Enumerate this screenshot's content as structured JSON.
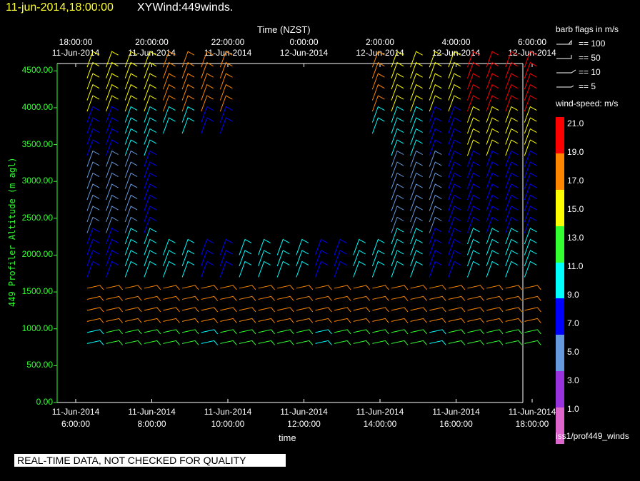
{
  "header": {
    "date": "11-jun-2014,18:00:00",
    "title": "XYWind:449winds."
  },
  "banner": "REAL-TIME DATA, NOT CHECKED FOR QUALITY",
  "legend": {
    "flags_title": "barb flags in m/s",
    "flags": [
      "== 100",
      "== 50",
      "== 10",
      "== 5"
    ],
    "speed_title": "wind-speed: m/s",
    "speed_labels": [
      "21.0",
      "19.0",
      "17.0",
      "15.0",
      "13.0",
      "11.0",
      "9.0",
      "7.0",
      "5.0",
      "3.0",
      "1.0"
    ],
    "source": "iss1/prof449_winds"
  },
  "colors": {
    "scale": [
      "#ff0000",
      "#ff8800",
      "#ffff00",
      "#33ff33",
      "#00ffff",
      "#0000ff",
      "#6699dd",
      "#9933dd",
      "#dd66cc"
    ],
    "axis_green": "#33ff33"
  },
  "chart_data": {
    "type": "wind-barb time-height",
    "title": "XYWind:449winds.",
    "top_axis": {
      "title": "Time (NZST)",
      "ticks": [
        [
          "18:00:00",
          "11-Jun-2014"
        ],
        [
          "20:00:00",
          "11-Jun-2014"
        ],
        [
          "22:00:00",
          "11-Jun-2014"
        ],
        [
          "0:00:00",
          "12-Jun-2014"
        ],
        [
          "2:00:00",
          "12-Jun-2014"
        ],
        [
          "4:00:00",
          "12-Jun-2014"
        ],
        [
          "6:00:00",
          "12-Jun-2014"
        ]
      ]
    },
    "bottom_axis": {
      "title": "time",
      "ticks": [
        [
          "11-Jun-2014",
          "6:00:00"
        ],
        [
          "11-Jun-2014",
          "8:00:00"
        ],
        [
          "11-Jun-2014",
          "10:00:00"
        ],
        [
          "11-Jun-2014",
          "12:00:00"
        ],
        [
          "11-Jun-2014",
          "14:00:00"
        ],
        [
          "11-Jun-2014",
          "16:00:00"
        ],
        [
          "11-Jun-2014",
          "18:00:00"
        ]
      ]
    },
    "x_hours_range": [
      0,
      12.3
    ],
    "y_axis": {
      "title": "449 Profiler Altitude (m agl)",
      "ticks": [
        "0.00",
        "500.00",
        "1000.00",
        "1500.00",
        "2000.00",
        "2500.00",
        "3000.00",
        "3500.00",
        "4000.00",
        "4500.00"
      ],
      "range": [
        0,
        4600
      ]
    },
    "profiles_hours": [
      0.3,
      0.8,
      1.3,
      1.8,
      2.3,
      2.8,
      3.3,
      3.8,
      4.3,
      4.8,
      5.3,
      5.8,
      6.3,
      6.8,
      7.3,
      7.8,
      8.3,
      8.8,
      9.3,
      9.8,
      10.3,
      10.8,
      11.3,
      11.8
    ],
    "gates_m": [
      800,
      950,
      1100,
      1250,
      1400,
      1550,
      1700,
      1850,
      2000,
      2150,
      2300,
      2450,
      2600,
      2750,
      2900,
      3050,
      3200,
      3350,
      3500,
      3650,
      3800,
      3950,
      4100,
      4250,
      4400,
      4550
    ],
    "barb_rule": "speed_m_s = base_by_altitude + step_by_time; data gap between 2100 and 3600 m from 8:00 to 14:00"
  }
}
